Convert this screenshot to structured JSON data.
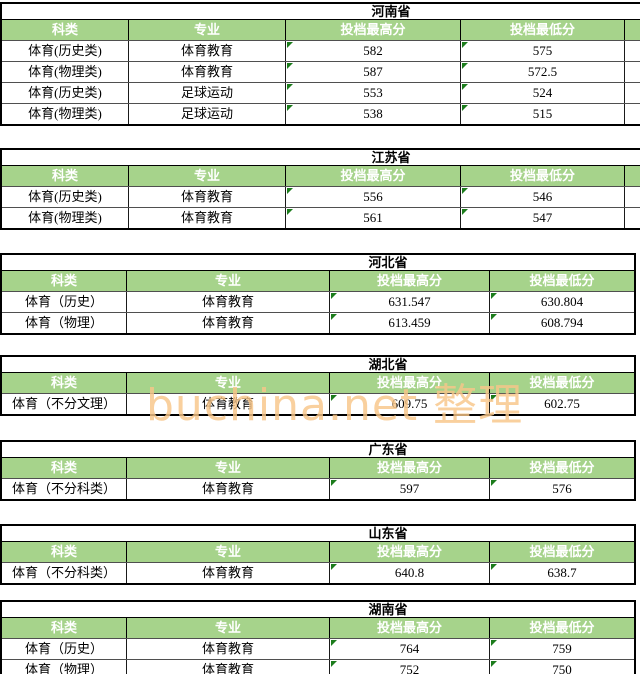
{
  "columns": [
    "科类",
    "专业",
    "投档最高分",
    "投档最低分"
  ],
  "tables": [
    {
      "province": "河南省",
      "rows": [
        [
          "体育(历史类)",
          "体育教育",
          "582",
          "575"
        ],
        [
          "体育(物理类)",
          "体育教育",
          "587",
          "572.5"
        ],
        [
          "体育(历史类)",
          "足球运动",
          "553",
          "524"
        ],
        [
          "体育(物理类)",
          "足球运动",
          "538",
          "515"
        ]
      ]
    },
    {
      "province": "江苏省",
      "rows": [
        [
          "体育(历史类)",
          "体育教育",
          "556",
          "546"
        ],
        [
          "体育(物理类)",
          "体育教育",
          "561",
          "547"
        ]
      ]
    },
    {
      "province": "河北省",
      "rows": [
        [
          "体育（历史）",
          "体育教育",
          "631.547",
          "630.804"
        ],
        [
          "体育（物理）",
          "体育教育",
          "613.459",
          "608.794"
        ]
      ]
    },
    {
      "province": "湖北省",
      "rows": [
        [
          "体育（不分文理）",
          "体育教育",
          "609.75",
          "602.75"
        ]
      ]
    },
    {
      "province": "广东省",
      "rows": [
        [
          "体育（不分科类）",
          "体育教育",
          "597",
          "576"
        ]
      ]
    },
    {
      "province": "山东省",
      "rows": [
        [
          "体育（不分科类）",
          "体育教育",
          "640.8",
          "638.7"
        ]
      ]
    },
    {
      "province": "湖南省",
      "rows": [
        [
          "体育（历史）",
          "体育教育",
          "764",
          "759"
        ],
        [
          "体育（物理）",
          "体育教育",
          "752",
          "750"
        ]
      ]
    }
  ],
  "watermark": {
    "text": "buchina.net 整理",
    "color": "#F8C689"
  },
  "colors": {
    "header_bg": "#A6D38B",
    "header_text": "#FFFFFF",
    "triangle_green": "#1C7C1C"
  }
}
